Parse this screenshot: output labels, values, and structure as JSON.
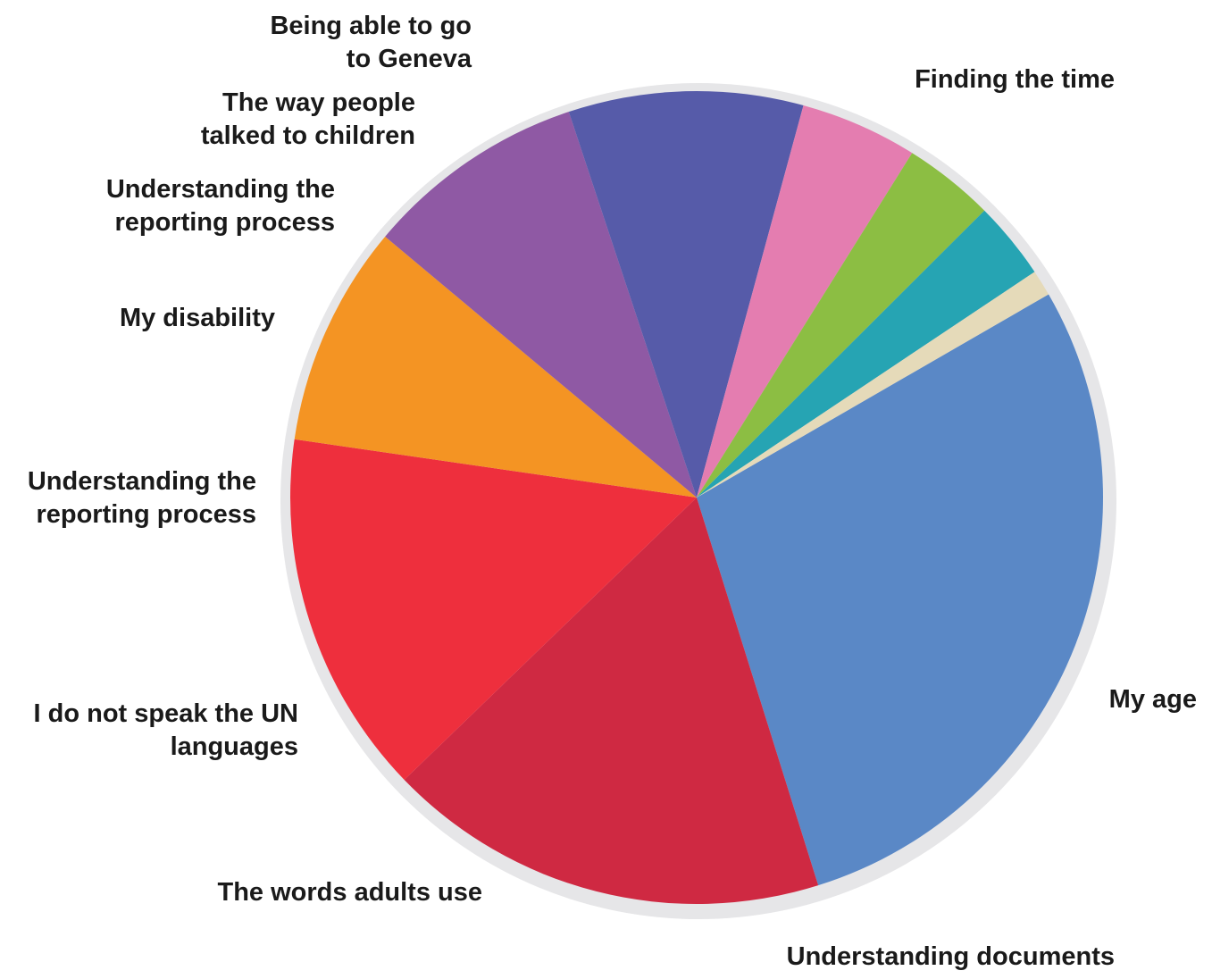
{
  "chart_data": {
    "type": "pie",
    "title": "",
    "start_angle_deg": 60,
    "direction": "clockwise",
    "slices": [
      {
        "label": "Finding the time",
        "value": 27.5,
        "color": "#5a88c6"
      },
      {
        "label": "My age",
        "value": 17.0,
        "color": "#cf2942"
      },
      {
        "label": "Understanding documents",
        "value": 14.0,
        "color": "#ee2f3d"
      },
      {
        "label": "The words adults use",
        "value": 8.5,
        "color": "#f49423"
      },
      {
        "label": "I do not speak the UN languages",
        "value": 8.5,
        "color": "#8f59a4"
      },
      {
        "label": "Understanding the reporting process",
        "value": 9.0,
        "color": "#565ba9"
      },
      {
        "label": "My disability",
        "value": 4.5,
        "color": "#e47db0"
      },
      {
        "label": "Understanding the reporting process",
        "value": 3.5,
        "color": "#8cbe43"
      },
      {
        "label": "The way people talked to children",
        "value": 3.0,
        "color": "#26a4b3"
      },
      {
        "label": "Being able to go to Geneva",
        "value": 1.0,
        "color": "#e5dab9"
      }
    ],
    "label_lines": [
      [
        "Finding the time"
      ],
      [
        "My age"
      ],
      [
        "Understanding documents"
      ],
      [
        "The words adults use"
      ],
      [
        "I do not speak the UN",
        "languages"
      ],
      [
        "Understanding the",
        "reporting process"
      ],
      [
        "My disability"
      ],
      [
        "Understanding the",
        "reporting process"
      ],
      [
        "The way people",
        "talked to children"
      ],
      [
        "Being able to go",
        "to Geneva"
      ]
    ],
    "ring_color": "#e6e6e8",
    "legend": "none"
  }
}
